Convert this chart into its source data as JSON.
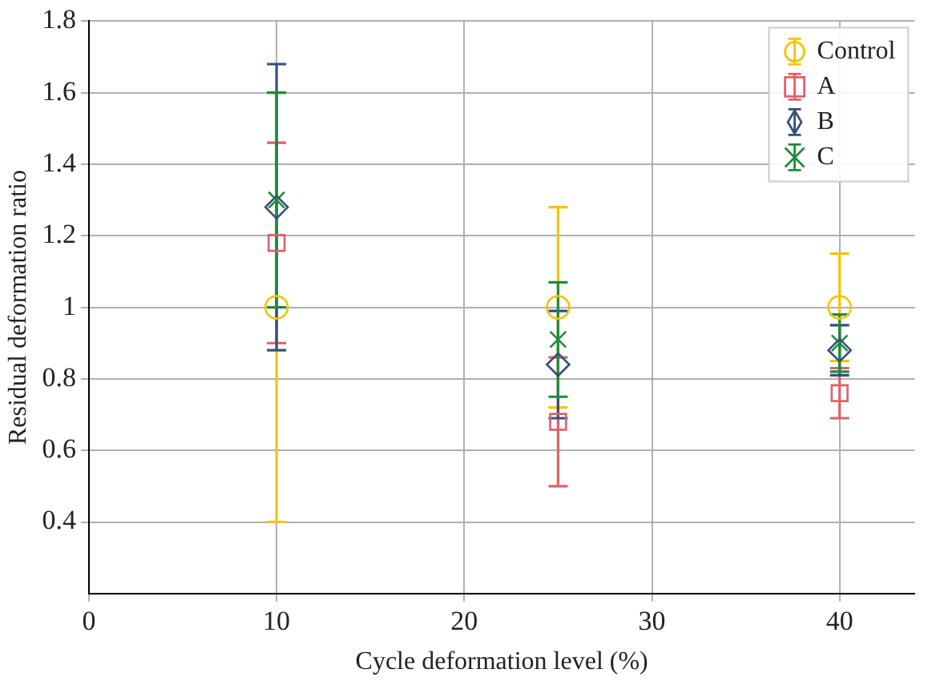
{
  "chart_data": {
    "type": "scatter",
    "xlabel": "Cycle deformation level (%)",
    "ylabel": "Residual deformation ratio",
    "x": [
      10,
      25,
      40
    ],
    "series": [
      {
        "name": "Control",
        "color": "#f5c400",
        "marker": "circle",
        "values": [
          1.0,
          1.0,
          1.0
        ],
        "errors": [
          0.6,
          0.28,
          0.15
        ]
      },
      {
        "name": "A",
        "color": "#e0606a",
        "marker": "square",
        "values": [
          1.18,
          0.68,
          0.76
        ],
        "errors": [
          0.28,
          0.18,
          0.07
        ]
      },
      {
        "name": "B",
        "color": "#34507a",
        "marker": "diamond",
        "values": [
          1.28,
          0.84,
          0.88
        ],
        "errors": [
          0.4,
          0.15,
          0.07
        ]
      },
      {
        "name": "C",
        "color": "#1e8c3e",
        "marker": "cross",
        "values": [
          1.3,
          0.91,
          0.9
        ],
        "errors": [
          0.3,
          0.16,
          0.08
        ]
      }
    ],
    "xlim": [
      0,
      44
    ],
    "xticks": [
      0,
      10,
      20,
      30,
      40
    ],
    "ylim": [
      0.2,
      1.8
    ],
    "yticks": [
      0.4,
      0.6,
      0.8,
      1.0,
      1.2,
      1.4,
      1.6,
      1.8
    ],
    "grid": true,
    "legend": "top right"
  }
}
